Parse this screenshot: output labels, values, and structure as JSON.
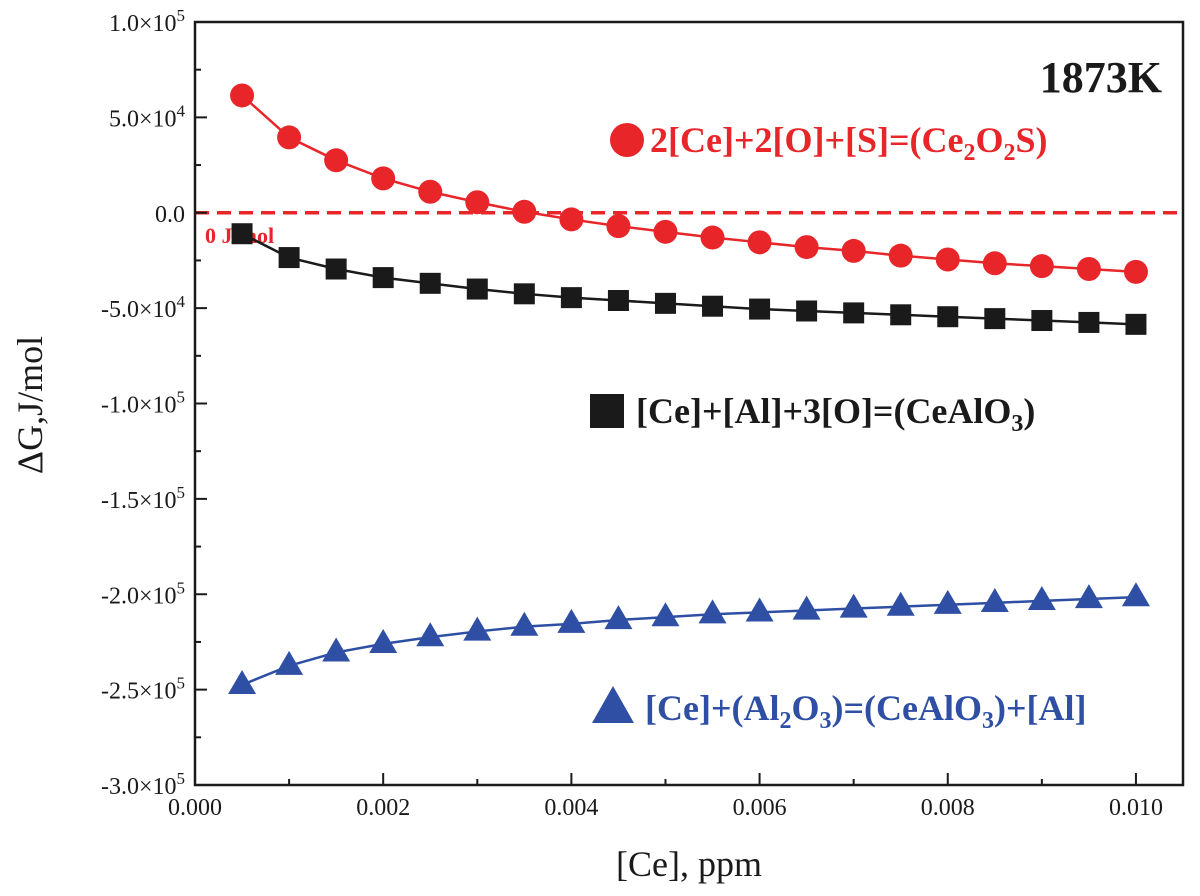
{
  "chart_data": {
    "type": "line",
    "xlabel": "[Ce], ppm",
    "ylabel": "ΔG,J/mol",
    "xlim": [
      0.0,
      0.0105
    ],
    "ylim": [
      -300000,
      100000
    ],
    "x_ticks": [
      0.0,
      0.002,
      0.004,
      0.006,
      0.008,
      0.01
    ],
    "x_tick_labels": [
      "0.000",
      "0.002",
      "0.004",
      "0.006",
      "0.008",
      "0.010"
    ],
    "y_ticks": [
      100000,
      50000,
      0,
      -50000,
      -100000,
      -150000,
      -200000,
      -250000,
      -300000
    ],
    "y_tick_labels": [
      {
        "mantissa": "1.0×10",
        "exp": "5"
      },
      {
        "mantissa": "5.0×10",
        "exp": "4"
      },
      {
        "mantissa": "0.0",
        "exp": ""
      },
      {
        "mantissa": "-5.0×10",
        "exp": "4"
      },
      {
        "mantissa": "-1.0×10",
        "exp": "5"
      },
      {
        "mantissa": "-1.5×10",
        "exp": "5"
      },
      {
        "mantissa": "-2.0×10",
        "exp": "5"
      },
      {
        "mantissa": "-2.5×10",
        "exp": "5"
      },
      {
        "mantissa": "-3.0×10",
        "exp": "5"
      }
    ],
    "annotation_temperature": "1873K",
    "reference_line": {
      "y": 0,
      "label": "0 J/mol",
      "color": "#e8262a"
    },
    "grid": false,
    "x": [
      0.0005,
      0.001,
      0.0015,
      0.002,
      0.0025,
      0.003,
      0.0035,
      0.004,
      0.0045,
      0.005,
      0.0055,
      0.006,
      0.0065,
      0.007,
      0.0075,
      0.008,
      0.0085,
      0.009,
      0.0095,
      0.01
    ],
    "series": [
      {
        "name": "2[Ce]+2[O]+[S]=(Ce2O2S)",
        "label_parts": [
          {
            "t": "2[Ce]+2[O]+[S]=(Ce"
          },
          {
            "t": "2",
            "sub": true
          },
          {
            "t": "O"
          },
          {
            "t": "2",
            "sub": true
          },
          {
            "t": "S)"
          }
        ],
        "color": "#e8262a",
        "marker": "circle",
        "values": [
          61500,
          39500,
          27500,
          18000,
          11000,
          5500,
          500,
          -3500,
          -7000,
          -10000,
          -13000,
          -15500,
          -18000,
          -20000,
          -22500,
          -24500,
          -26500,
          -28000,
          -29500,
          -31000
        ]
      },
      {
        "name": "[Ce]+[Al]+3[O]=(CeAlO3)",
        "label_parts": [
          {
            "t": "[Ce]+[Al]+3[O]=(CeAlO"
          },
          {
            "t": "3",
            "sub": true
          },
          {
            "t": ")"
          }
        ],
        "color": "#1a1a1a",
        "marker": "square",
        "values": [
          -11000,
          -23500,
          -29500,
          -34000,
          -37000,
          -40000,
          -42500,
          -44500,
          -46000,
          -47500,
          -49000,
          -50500,
          -51500,
          -52500,
          -53500,
          -54500,
          -55500,
          -56500,
          -57500,
          -58500
        ]
      },
      {
        "name": "[Ce]+(Al2O3)=(CeAlO3)+[Al]",
        "label_parts": [
          {
            "t": "[Ce]+(Al"
          },
          {
            "t": "2",
            "sub": true
          },
          {
            "t": "O"
          },
          {
            "t": "3",
            "sub": true
          },
          {
            "t": ")=(CeAlO"
          },
          {
            "t": "3",
            "sub": true
          },
          {
            "t": ")+[Al]"
          }
        ],
        "color": "#2e4fa3",
        "marker": "triangle",
        "values": [
          -247500,
          -237500,
          -230500,
          -226000,
          -222500,
          -219500,
          -217000,
          -215500,
          -213500,
          -212000,
          -210500,
          -209500,
          -208500,
          -207500,
          -206500,
          -205500,
          -204500,
          -203500,
          -202500,
          -201500
        ]
      }
    ]
  }
}
